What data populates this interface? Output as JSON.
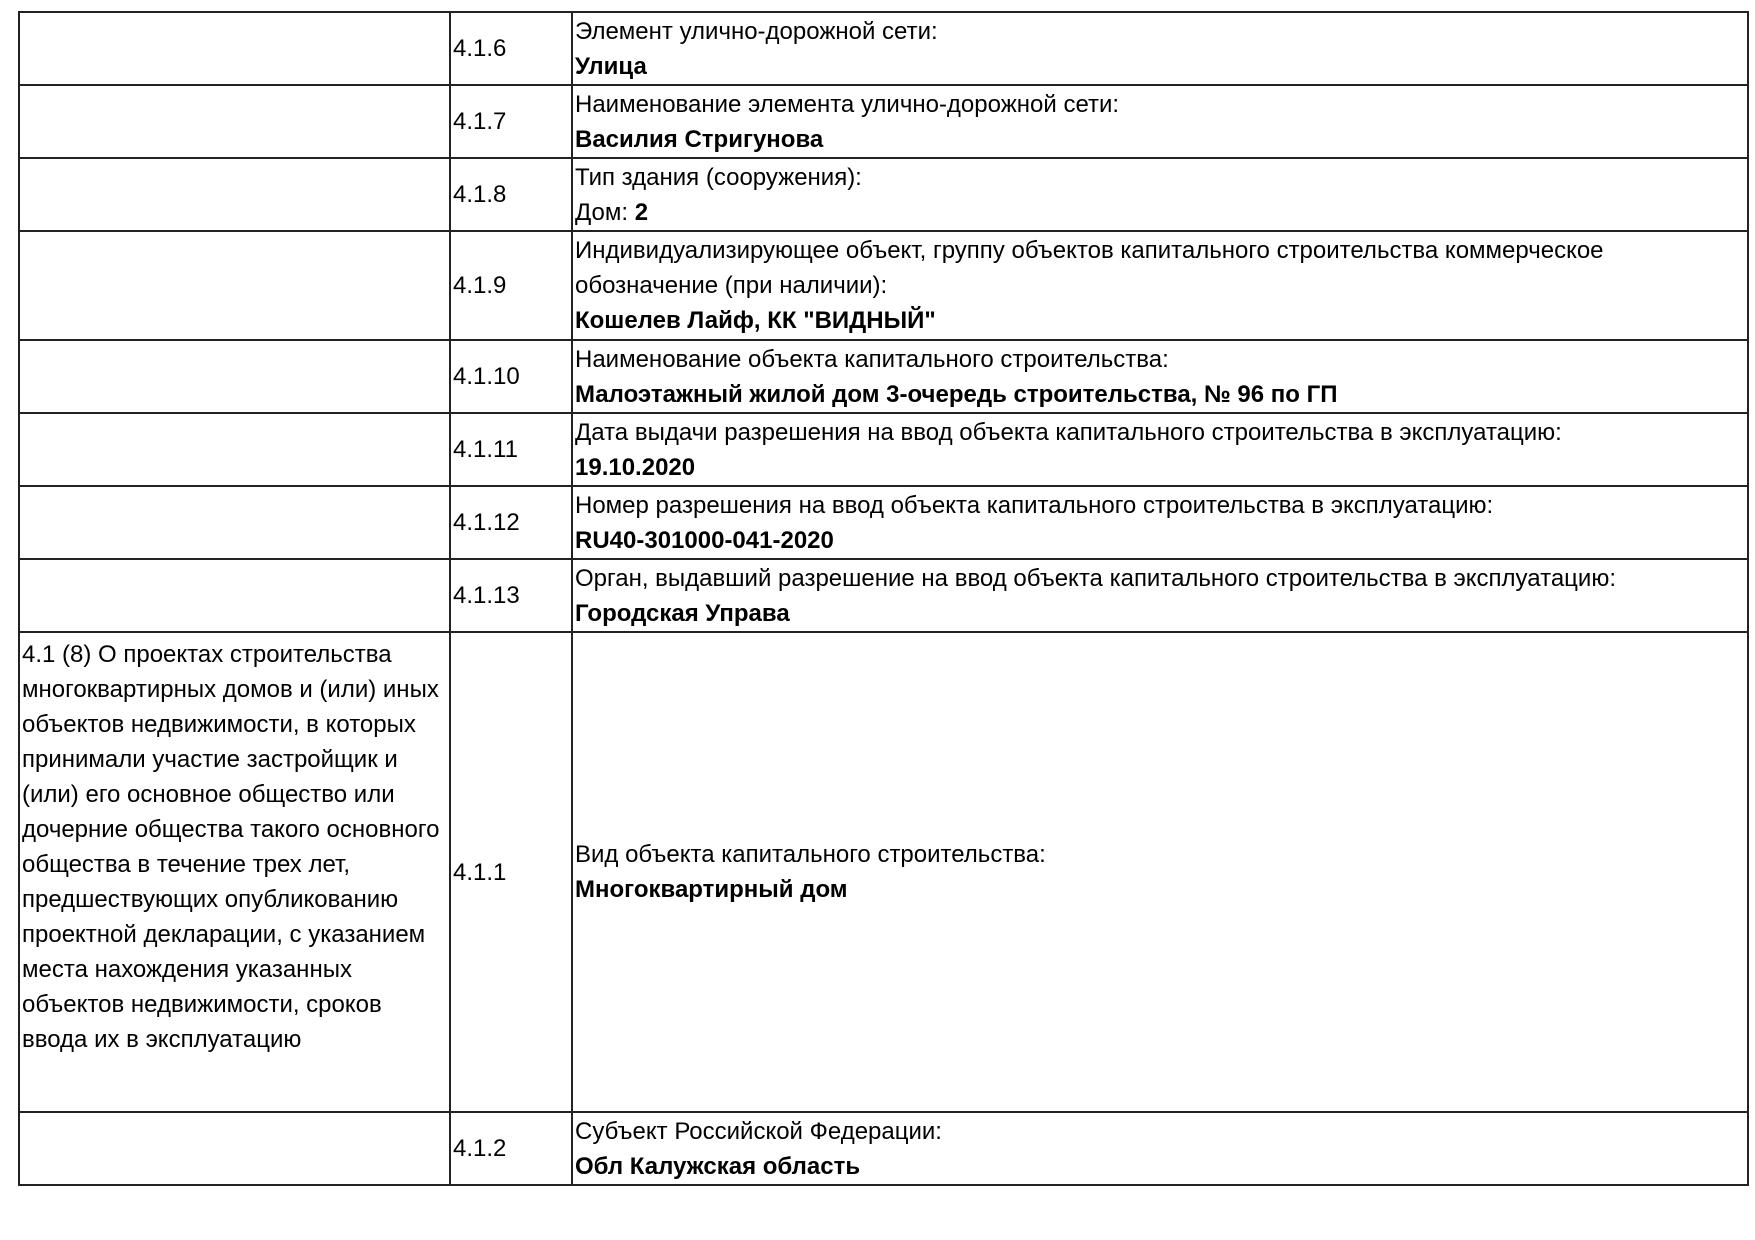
{
  "rows": [
    {
      "section": "",
      "code": "4.1.6",
      "label": "Элемент улично-дорожной сети:",
      "value": "Улица"
    },
    {
      "section": "",
      "code": "4.1.7",
      "label": "Наименование элемента улично-дорожной сети:",
      "value": "Василия Стригунова"
    },
    {
      "section": "",
      "code": "4.1.8",
      "label": "Тип здания (сооружения):",
      "value_prefix": "Дом: ",
      "value": "2"
    },
    {
      "section": "",
      "code": "4.1.9",
      "label": "Индивидуализирующее объект, группу объектов капитального строительства коммерческое обозначение (при наличии):",
      "value": "Кошелев Лайф, КК \"ВИДНЫЙ\""
    },
    {
      "section": "",
      "code": "4.1.10",
      "label": "Наименование объекта капитального строительства:",
      "value": "Малоэтажный жилой дом 3-очередь строительства, № 96 по ГП"
    },
    {
      "section": "",
      "code": "4.1.11",
      "label": "Дата выдачи разрешения на ввод объекта капитального строительства в эксплуатацию:",
      "value": "19.10.2020"
    },
    {
      "section": "",
      "code": "4.1.12",
      "label": "Номер разрешения на ввод объекта капитального строительства в эксплуатацию:",
      "value": "RU40-301000-041-2020"
    },
    {
      "section": "",
      "code": "4.1.13",
      "label": "Орган, выдавший разрешение на ввод объекта капитального строительства в эксплуатацию:",
      "value": "Городская Управа"
    },
    {
      "section": "4.1 (8) О проектах строительства многоквартирных домов и (или) иных объектов недвижимости, в которых принимали участие застройщик и (или) его основное общество или дочерние общества такого основного общества в течение трех лет, предшествующих опубликованию проектной декларации, с указанием места нахождения указанных объектов недвижимости, сроков ввода их в эксплуатацию",
      "code": "4.1.1",
      "label": "Вид объекта капитального строительства:",
      "value": "Многоквартирный дом"
    },
    {
      "section": "",
      "code": "4.1.2",
      "label": "Субъект Российской Федерации:",
      "value": "Обл Калужская область"
    }
  ]
}
